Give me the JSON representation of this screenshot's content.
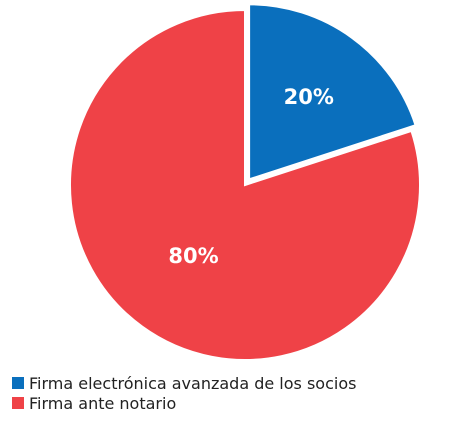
{
  "chart_data": {
    "type": "pie",
    "slices": [
      {
        "label": "Firma electrónica avanzada de los socios",
        "value": 20,
        "display": "20%",
        "color": "#0a6fbd"
      },
      {
        "label": "Firma ante notario",
        "value": 80,
        "display": "80%",
        "color": "#ef4247"
      }
    ],
    "legend_position": "bottom-left"
  }
}
